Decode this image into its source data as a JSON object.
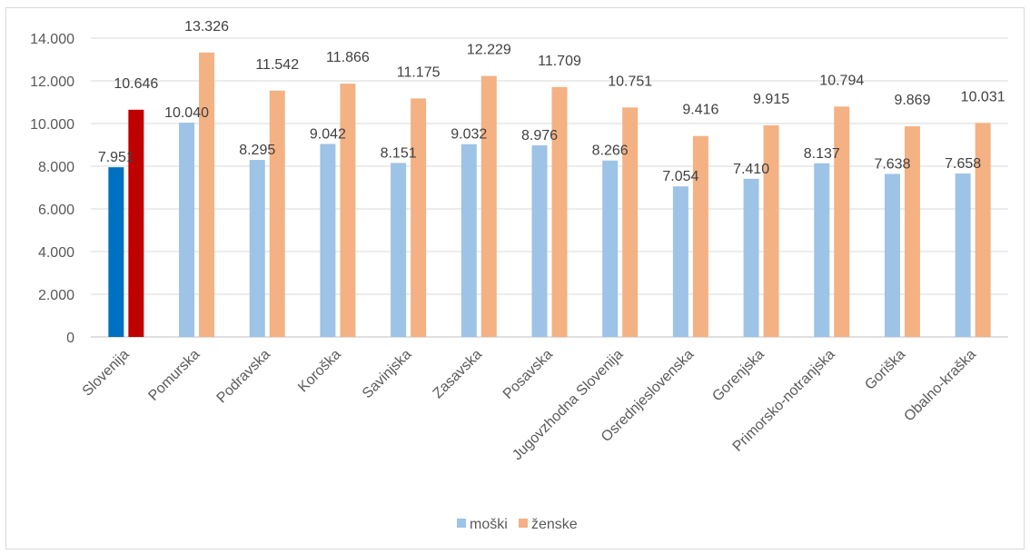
{
  "chart_data": {
    "type": "bar",
    "title": "",
    "xlabel": "",
    "ylabel": "",
    "ylim": [
      0,
      14000
    ],
    "yticks": [
      0,
      2000,
      4000,
      6000,
      8000,
      10000,
      12000,
      14000
    ],
    "ytick_labels": [
      "0",
      "2.000",
      "4.000",
      "6.000",
      "8.000",
      "10.000",
      "12.000",
      "14.000"
    ],
    "grid": true,
    "legend_position": "bottom",
    "categories": [
      "Slovenija",
      "Pomurska",
      "Podravska",
      "Koroška",
      "Savinjska",
      "Zasavska",
      "Posavska",
      "Jugovzhodna Slovenija",
      "Osrednjeslovenska",
      "Gorenjska",
      "Primorsko-notranjska",
      "Goriška",
      "Obalno-kraška"
    ],
    "series": [
      {
        "name": "moški",
        "color": "#9dc3e6",
        "highlight_color": "#0070c0",
        "values": [
          7951,
          10040,
          8295,
          9042,
          8151,
          9032,
          8976,
          8266,
          7054,
          7410,
          8137,
          7638,
          7658
        ],
        "labels": [
          "7.951",
          "10.040",
          "8.295",
          "9.042",
          "8.151",
          "9.032",
          "8.976",
          "8.266",
          "7.054",
          "7.410",
          "8.137",
          "7.638",
          "7.658"
        ]
      },
      {
        "name": "ženske",
        "color": "#f4b183",
        "highlight_color": "#c00000",
        "values": [
          10646,
          13326,
          11542,
          11866,
          11175,
          12229,
          11709,
          10751,
          9416,
          9915,
          10794,
          9869,
          10031
        ],
        "labels": [
          "10.646",
          "13.326",
          "11.542",
          "11.866",
          "11.175",
          "12.229",
          "11.709",
          "10.751",
          "9.416",
          "9.915",
          "10.794",
          "9.869",
          "10.031"
        ]
      }
    ],
    "highlighted_category": "Slovenija"
  }
}
